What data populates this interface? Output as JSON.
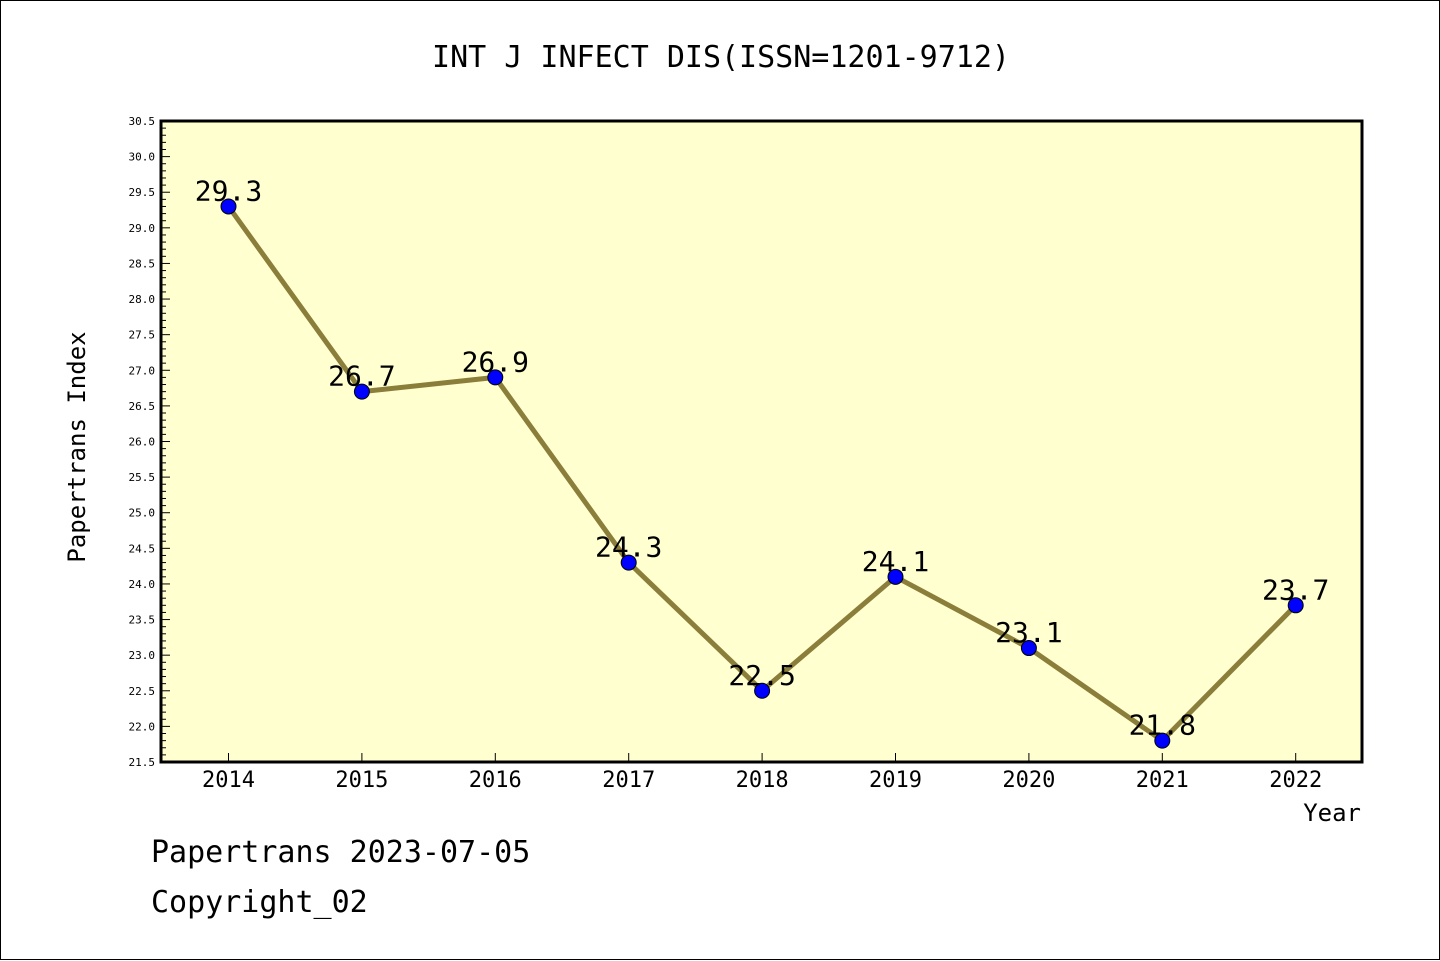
{
  "chart_data": {
    "type": "line",
    "title": "INT J INFECT DIS(ISSN=1201-9712)",
    "xlabel": "Year",
    "ylabel": "Papertrans Index",
    "categories": [
      "2014",
      "2015",
      "2016",
      "2017",
      "2018",
      "2019",
      "2020",
      "2021",
      "2022"
    ],
    "series": [
      {
        "values": [
          29.3,
          26.7,
          26.9,
          24.3,
          22.5,
          24.1,
          23.1,
          21.8,
          23.7
        ]
      }
    ],
    "data_labels": [
      "29.3",
      "26.7",
      "26.9",
      "24.3",
      "22.5",
      "24.1",
      "23.1",
      "21.8",
      "23.7"
    ],
    "ylim": [
      21.5,
      30.5
    ],
    "ytick_labels": [
      "21.5",
      "22.0",
      "22.5",
      "23.0",
      "23.5",
      "24.0",
      "24.5",
      "25.0",
      "25.5",
      "26.0",
      "26.5",
      "27.0",
      "27.5",
      "28.0",
      "28.5",
      "29.0",
      "29.5",
      "30.0",
      "30.5"
    ],
    "grid": false,
    "legend": "none",
    "colors": {
      "plot_background": "#FFFFD0",
      "line": "#8B7D3A",
      "marker": "#0000FF",
      "axis": "#000000"
    }
  },
  "footer": {
    "date_line": "Papertrans 2023-07-05",
    "copyright": "Copyright_02"
  }
}
